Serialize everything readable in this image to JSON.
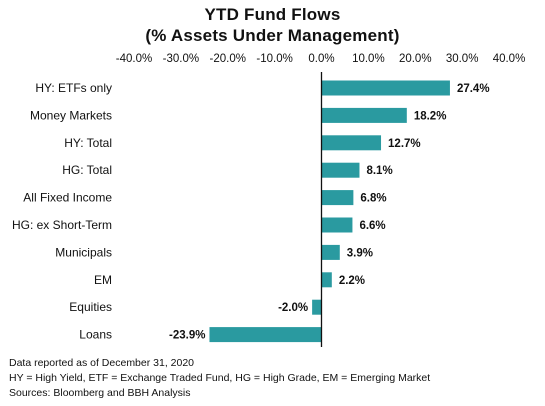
{
  "chart_data": {
    "type": "bar",
    "orientation": "horizontal",
    "title": "YTD Fund Flows",
    "subtitle": "(% Assets Under Management)",
    "categories": [
      "HY: ETFs only",
      "Money Markets",
      "HY: Total",
      "HG: Total",
      "All Fixed Income",
      "HG: ex Short-Term",
      "Municipals",
      "EM",
      "Equities",
      "Loans"
    ],
    "values": [
      27.4,
      18.2,
      12.7,
      8.1,
      6.8,
      6.6,
      3.9,
      2.2,
      -2.0,
      -23.9
    ],
    "value_labels": [
      "27.4%",
      "18.2%",
      "12.7%",
      "8.1%",
      "6.8%",
      "6.6%",
      "3.9%",
      "2.2%",
      "-2.0%",
      "-23.9%"
    ],
    "xlim": [
      -40,
      40
    ],
    "x_ticks": [
      "-40.0%",
      "-30.0%",
      "-20.0%",
      "-10.0%",
      "0.0%",
      "10.0%",
      "20.0%",
      "30.0%",
      "40.0%"
    ],
    "x_axis_position": "top",
    "grid": false,
    "bar_color": "#2a9aa0",
    "xlabel": "",
    "ylabel": ""
  },
  "notes": [
    "Data reported as of December 31, 2020",
    "HY = High Yield, ETF = Exchange Traded Fund, HG = High Grade, EM = Emerging Market",
    "Sources: Bloomberg and BBH Analysis"
  ]
}
